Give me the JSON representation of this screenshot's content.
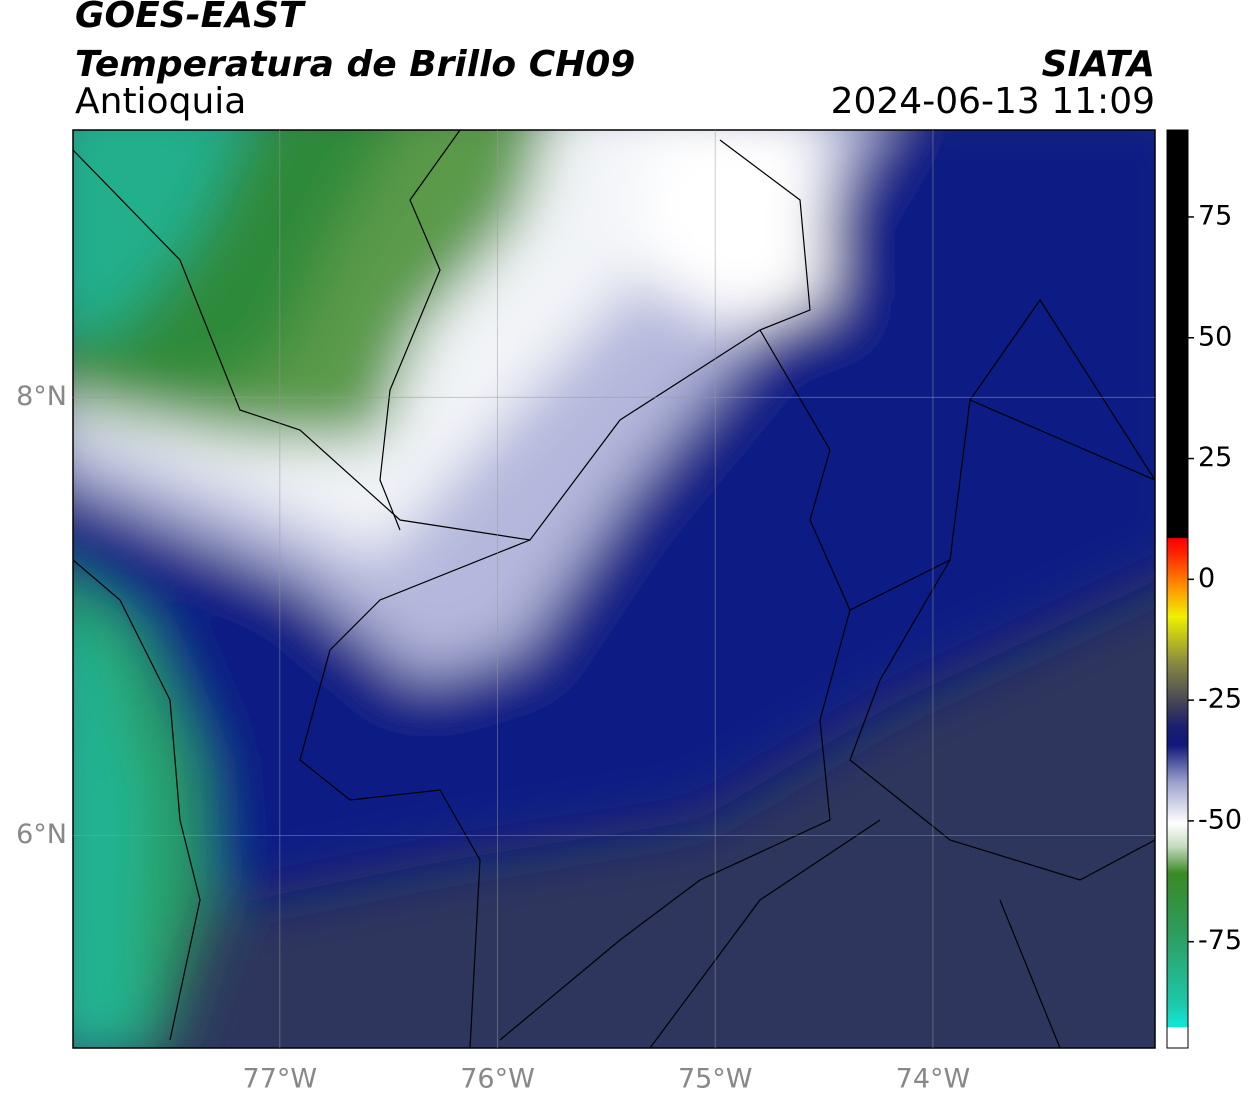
{
  "chart_data": {
    "type": "map",
    "title": "GOES-EAST",
    "subtitle": "Temperatura de Brillo CH09",
    "region": "Antioquia",
    "source": "SIATA",
    "timestamp": "2024-06-13 11:09",
    "xlim": [
      -77.95,
      -72.98
    ],
    "xticks": [
      {
        "value": -77,
        "label": "77°W"
      },
      {
        "value": -76,
        "label": "76°W"
      },
      {
        "value": -75,
        "label": "75°W"
      },
      {
        "value": -74,
        "label": "74°W"
      }
    ],
    "ylim": [
      5.03,
      9.22
    ],
    "yticks": [
      {
        "value": 6,
        "label": "6°N"
      },
      {
        "value": 8,
        "label": "8°N"
      }
    ],
    "grid": true,
    "colorbar": {
      "lim": [
        -97,
        93
      ],
      "ticks": [
        -75,
        -50,
        -25,
        0,
        25,
        50,
        75
      ]
    }
  }
}
